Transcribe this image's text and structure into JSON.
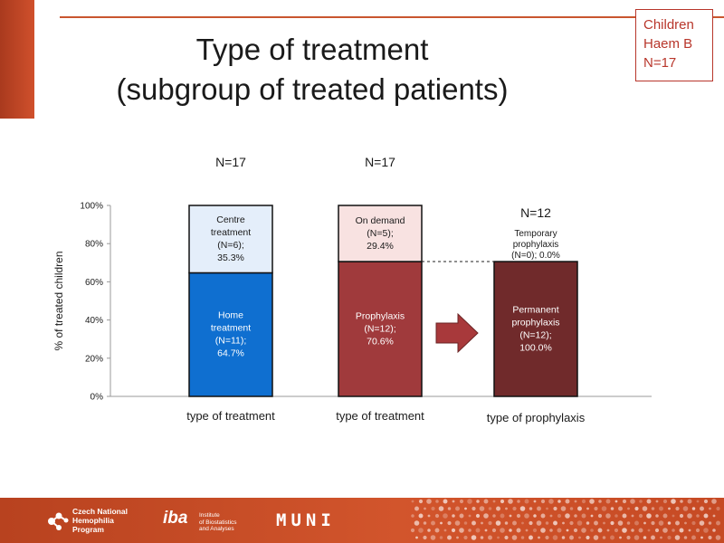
{
  "title": {
    "line1": "Type of treatment",
    "line2": "(subgroup of treated patients)"
  },
  "badge": {
    "line1": "Children",
    "line2": "Haem B",
    "line3": "N=17"
  },
  "colors": {
    "accent": "#c9562f",
    "home_treatment": "#0f6fd0",
    "centre_treatment": "#e4eefa",
    "prophylaxis": "#a03a3c",
    "on_demand": "#f8e2e1",
    "permanent_prophylaxis": "#702a2b",
    "badge": "#b8362b"
  },
  "chart_data": {
    "type": "bar",
    "stacked": true,
    "ylabel": "% of treated children",
    "ylim": [
      0,
      100
    ],
    "yticks": [
      "0%",
      "20%",
      "40%",
      "60%",
      "80%",
      "100%"
    ],
    "arrow": "right-arrow-icon",
    "bars": [
      {
        "category": "type of treatment",
        "n_label": "N=17",
        "segments": [
          {
            "label": [
              "Home",
              "treatment",
              "(N=11);",
              "64.7%"
            ],
            "value": 64.7,
            "color": "#0f6fd0",
            "text_color": "#ffffff"
          },
          {
            "label": [
              "Centre",
              "treatment",
              "(N=6);",
              "35.3%"
            ],
            "value": 35.3,
            "color": "#e4eefa",
            "text_color": "#1a1a1a"
          }
        ]
      },
      {
        "category": "type of treatment",
        "n_label": "N=17",
        "segments": [
          {
            "label": [
              "Prophylaxis",
              "(N=12);",
              "70.6%"
            ],
            "value": 70.6,
            "color": "#a03a3c",
            "text_color": "#ffffff"
          },
          {
            "label": [
              "On demand",
              "(N=5);",
              "29.4%"
            ],
            "value": 29.4,
            "color": "#f8e2e1",
            "text_color": "#1a1a1a"
          }
        ]
      },
      {
        "category": "type of prophylaxis",
        "n_label": "N=12",
        "segments": [
          {
            "label": [
              "Permanent",
              "prophylaxis",
              "(N=12);",
              "100.0%"
            ],
            "value": 70.6,
            "color": "#702a2b",
            "text_color": "#ffffff"
          },
          {
            "label": [
              "Temporary",
              "prophylaxis",
              "(N=0); 0.0%"
            ],
            "value": 0,
            "color": "#f8e2e1",
            "text_color": "#1a1a1a"
          }
        ]
      }
    ]
  },
  "footer": {
    "logo1_lines": [
      "Czech National",
      "Hemophilia",
      "Program"
    ],
    "logo2_mark": "iba",
    "logo2_lines": [
      "Institute",
      "of Biostatistics",
      "and Analyses"
    ],
    "logo3": "MUNI"
  }
}
